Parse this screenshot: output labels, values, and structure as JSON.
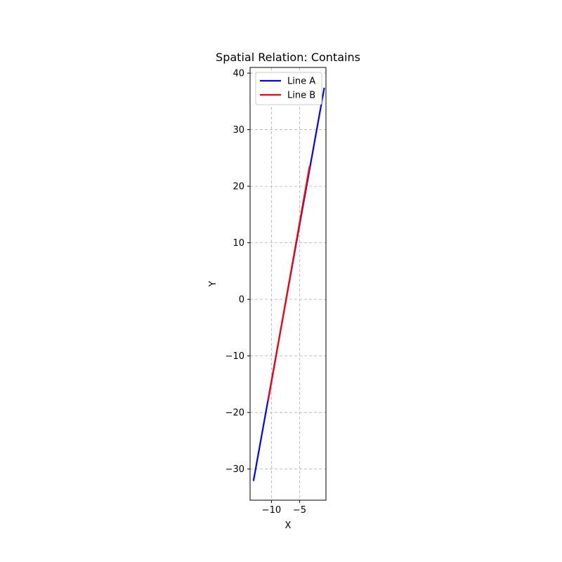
{
  "chart_data": {
    "type": "line",
    "title": "Spatial Relation: Contains",
    "xlabel": "X",
    "ylabel": "Y",
    "xlim": [
      -13.8,
      -0.3
    ],
    "ylim": [
      -35.5,
      41.0
    ],
    "xticks": [
      -10,
      -5
    ],
    "xtick_labels": [
      "−10",
      "−5"
    ],
    "yticks": [
      -30,
      -20,
      -10,
      0,
      10,
      20,
      30,
      40
    ],
    "ytick_labels": [
      "−30",
      "−20",
      "−10",
      "0",
      "10",
      "20",
      "30",
      "40"
    ],
    "grid": true,
    "legend_position": "upper-left",
    "series": [
      {
        "name": "Line A",
        "color": "#0000ff",
        "x": [
          -13.2,
          -0.6
        ],
        "y": [
          -32.1,
          37.4
        ]
      },
      {
        "name": "Line B",
        "color": "#ff0000",
        "x": [
          -10.6,
          -3.2
        ],
        "y": [
          -18.0,
          23.6
        ]
      }
    ]
  }
}
